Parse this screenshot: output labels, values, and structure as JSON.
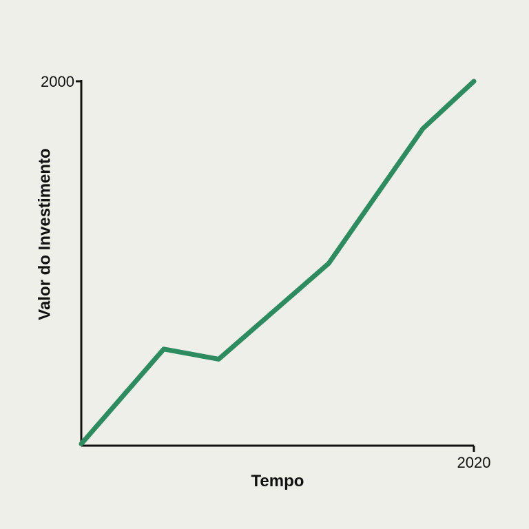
{
  "chart_data": {
    "type": "line",
    "title": "",
    "xlabel": "Tempo",
    "ylabel": "Valor do Investimento",
    "x_tick_labels": [
      {
        "label": "2020",
        "x": 1
      }
    ],
    "y_tick_labels": [
      {
        "label": "2000",
        "y": 2000
      }
    ],
    "xlim": [
      0,
      1
    ],
    "ylim": [
      0,
      2000
    ],
    "grid": false,
    "legend": "none",
    "series": [
      {
        "color": "#2e8b60",
        "points": [
          {
            "x": 0.0,
            "y": 10
          },
          {
            "x": 0.21,
            "y": 530
          },
          {
            "x": 0.35,
            "y": 475
          },
          {
            "x": 0.63,
            "y": 1000
          },
          {
            "x": 0.87,
            "y": 1740
          },
          {
            "x": 1.0,
            "y": 2000
          }
        ]
      }
    ]
  }
}
